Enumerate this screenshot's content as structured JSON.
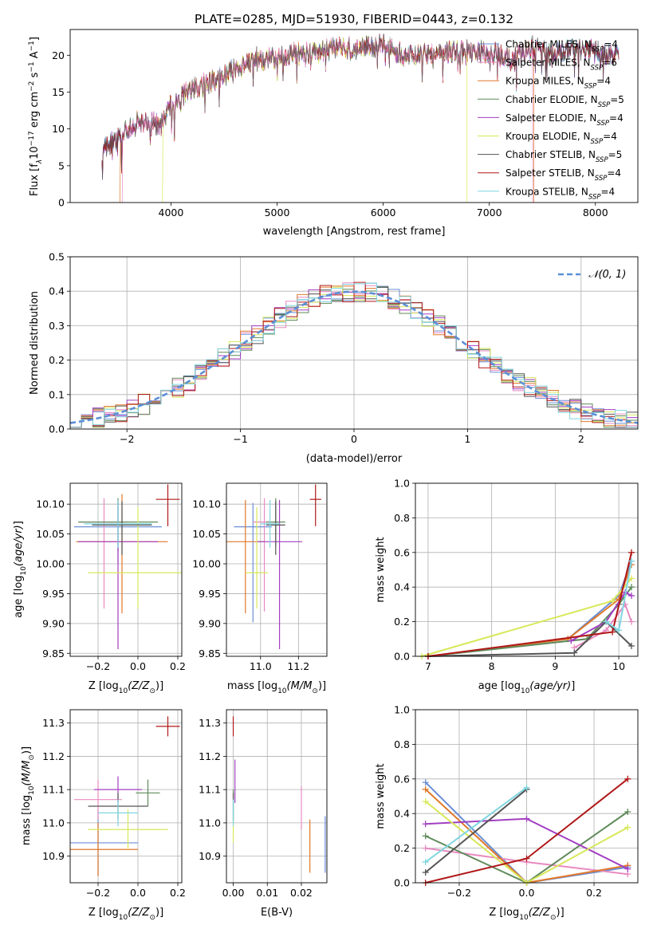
{
  "figure_title": "PLATE=0285, MJD=51930, FIBERID=0443, z=0.132",
  "models": [
    {
      "name": "Chabrier MILES",
      "nssp": 4,
      "color": "#6a8fd6"
    },
    {
      "name": "Salpeter MILES",
      "nssp": 6,
      "color": "#e88ac0"
    },
    {
      "name": "Kroupa MILES",
      "nssp": 4,
      "color": "#e0782a"
    },
    {
      "name": "Chabrier ELODIE",
      "nssp": 5,
      "color": "#5f8a5a"
    },
    {
      "name": "Salpeter ELODIE",
      "nssp": 4,
      "color": "#a23fc2"
    },
    {
      "name": "Kroupa ELODIE",
      "nssp": 4,
      "color": "#d8e85a"
    },
    {
      "name": "Chabrier STELIB",
      "nssp": 5,
      "color": "#555555"
    },
    {
      "name": "Salpeter STELIB",
      "nssp": 4,
      "color": "#b01818"
    },
    {
      "name": "Kroupa STELIB",
      "nssp": 4,
      "color": "#7fd6e0"
    }
  ],
  "chart_data": [
    {
      "id": "spectrum",
      "type": "line",
      "xlabel": "wavelength [Angstrom, rest frame]",
      "ylabel_main": "Flux [f",
      "ylabel_sub": "λ",
      "ylabel_rest": "10",
      "ylabel_exp": "−17",
      "ylabel_tail": " erg cm",
      "ylabel_tail_exp": "−2",
      "ylabel_tail2": " s",
      "ylabel_tail2_exp": "−1",
      "ylabel_tail3": " A",
      "ylabel_tail3_exp": "−1",
      "ylabel_end": "]",
      "xlim": [
        3050,
        8400
      ],
      "ylim": [
        0,
        23.5
      ],
      "xticks": [
        4000,
        5000,
        6000,
        7000,
        8000
      ],
      "yticks": [
        0,
        5,
        10,
        15,
        20
      ],
      "continuum": [
        [
          3350,
          7.5
        ],
        [
          3500,
          8.5
        ],
        [
          3700,
          11
        ],
        [
          3900,
          10.5
        ],
        [
          4000,
          13
        ],
        [
          4200,
          15.5
        ],
        [
          4400,
          16.5
        ],
        [
          4600,
          18
        ],
        [
          4800,
          19.5
        ],
        [
          5000,
          19.5
        ],
        [
          5200,
          20.5
        ],
        [
          5400,
          20.5
        ],
        [
          5600,
          21
        ],
        [
          5800,
          21
        ],
        [
          6000,
          21.5
        ],
        [
          6200,
          20
        ],
        [
          6400,
          20
        ],
        [
          6600,
          20.5
        ],
        [
          6800,
          20.5
        ],
        [
          7000,
          20.5
        ],
        [
          7200,
          19.5
        ],
        [
          7400,
          21
        ],
        [
          7600,
          20
        ],
        [
          7800,
          21
        ],
        [
          8000,
          20.5
        ],
        [
          8200,
          20
        ]
      ],
      "model_cutoffs": [
        {
          "model": "Kroupa MILES",
          "start": 3520,
          "end": 7420
        },
        {
          "model": "Kroupa ELODIE",
          "start": 3920,
          "end": 6790
        },
        {
          "model": "Salpeter MILES",
          "start": 3540,
          "end": 7410
        }
      ]
    },
    {
      "id": "residuals",
      "type": "histogram",
      "xlabel": "(data-model)/error",
      "ylabel": "Normed distribution",
      "xlim": [
        -2.5,
        2.5
      ],
      "ylim": [
        0,
        0.5
      ],
      "xticks": [
        -2,
        -1,
        0,
        1,
        2
      ],
      "xtick_labels": [
        "−2",
        "−1",
        "0",
        "1",
        "2"
      ],
      "yticks": [
        0.0,
        0.1,
        0.2,
        0.3,
        0.4,
        0.5
      ],
      "ytick_labels": [
        "0.0",
        "0.1",
        "0.2",
        "0.3",
        "0.4",
        "0.5"
      ],
      "bin_width": 0.1,
      "bin_start": -2.5,
      "reference_curve": "normal",
      "reference_label": "𝒩(0, 1)",
      "reference_color": "#5b8fd6"
    },
    {
      "id": "age-vs-Z",
      "type": "scatter",
      "xlabel_main": "Z [log",
      "xlabel_sub": "10",
      "xlabel_rest": "(Z/Z",
      "xlabel_sun": "⊙",
      "xlabel_end": ")]",
      "ylabel": "age  [log10(age/yr)]",
      "xlim": [
        -0.34,
        0.22
      ],
      "ylim": [
        9.845,
        10.135
      ],
      "xticks": [
        -0.2,
        0.0,
        0.2
      ],
      "xtick_labels": [
        "−0.2",
        "0.0",
        "0.2"
      ],
      "yticks": [
        9.85,
        9.9,
        9.95,
        10.0,
        10.05,
        10.1
      ],
      "ytick_labels": [
        "9.85",
        "9.90",
        "9.95",
        "10.00",
        "10.05",
        "10.10"
      ],
      "points": [
        {
          "model": "Chabrier MILES",
          "x": -0.1,
          "y": 10.062,
          "xerr": 0.22,
          "yerr": [
            0.06,
            0.04
          ]
        },
        {
          "model": "Salpeter MILES",
          "x": -0.17,
          "y": 10.07,
          "xerr": 0.12,
          "yerr": [
            0.145,
            0.04
          ]
        },
        {
          "model": "Kroupa MILES",
          "x": -0.08,
          "y": 10.037,
          "xerr": 0.23,
          "yerr": [
            0.12,
            0.08
          ]
        },
        {
          "model": "Chabrier ELODIE",
          "x": -0.1,
          "y": 10.07,
          "xerr": 0.2,
          "yerr": [
            0.05,
            0.04
          ]
        },
        {
          "model": "Salpeter ELODIE",
          "x": -0.1,
          "y": 10.037,
          "xerr": 0.2,
          "yerr": [
            0.18,
            0.07
          ]
        },
        {
          "model": "Kroupa ELODIE",
          "x": 0.0,
          "y": 9.985,
          "xerr": 0.25,
          "yerr": [
            0.06,
            0.11
          ]
        },
        {
          "model": "Chabrier STELIB",
          "x": -0.08,
          "y": 10.065,
          "xerr": 0.15,
          "yerr": [
            0.05,
            0.04
          ]
        },
        {
          "model": "Salpeter STELIB",
          "x": 0.15,
          "y": 10.108,
          "xerr": 0.06,
          "yerr": [
            0.045,
            0.025
          ]
        },
        {
          "model": "Kroupa STELIB",
          "x": -0.1,
          "y": 10.067,
          "xerr": 0.17,
          "yerr": [
            0.04,
            0.04
          ]
        }
      ]
    },
    {
      "id": "age-vs-mass",
      "type": "scatter",
      "xlabel_main": "mass [log",
      "xlabel_sub": "10",
      "xlabel_rest": "(M/M",
      "xlabel_sun": "⊙",
      "xlabel_end": ")]",
      "xlim": [
        10.82,
        11.35
      ],
      "ylim": [
        9.845,
        10.135
      ],
      "xticks": [
        11.0,
        11.2
      ],
      "xtick_labels": [
        "11.0",
        "11.2"
      ],
      "yticks": [
        9.85,
        9.9,
        9.95,
        10.0,
        10.05,
        10.1
      ],
      "ytick_labels": [
        "9.85",
        "9.90",
        "9.95",
        "10.00",
        "10.05",
        "10.10"
      ],
      "points": [
        {
          "model": "Chabrier MILES",
          "x": 10.96,
          "y": 10.062,
          "xerr": 0.1,
          "yerr": [
            0.16,
            0.04
          ]
        },
        {
          "model": "Salpeter MILES",
          "x": 11.02,
          "y": 10.07,
          "xerr": 0.06,
          "yerr": [
            0.15,
            0.04
          ]
        },
        {
          "model": "Kroupa MILES",
          "x": 10.92,
          "y": 10.037,
          "xerr": 0.1,
          "yerr": [
            0.12,
            0.07
          ]
        },
        {
          "model": "Chabrier ELODIE",
          "x": 11.08,
          "y": 10.07,
          "xerr": 0.05,
          "yerr": [
            0.04,
            0.04
          ]
        },
        {
          "model": "Salpeter ELODIE",
          "x": 11.1,
          "y": 10.037,
          "xerr": 0.12,
          "yerr": [
            0.18,
            0.07
          ]
        },
        {
          "model": "Kroupa ELODIE",
          "x": 10.98,
          "y": 9.985,
          "xerr": 0.06,
          "yerr": [
            0.06,
            0.11
          ]
        },
        {
          "model": "Chabrier STELIB",
          "x": 11.08,
          "y": 10.065,
          "xerr": 0.05,
          "yerr": [
            0.05,
            0.04
          ]
        },
        {
          "model": "Salpeter STELIB",
          "x": 11.29,
          "y": 10.108,
          "xerr": 0.03,
          "yerr": [
            0.045,
            0.025
          ]
        },
        {
          "model": "Kroupa STELIB",
          "x": 11.05,
          "y": 10.067,
          "xerr": 0.05,
          "yerr": [
            0.04,
            0.04
          ]
        }
      ]
    },
    {
      "id": "weight-vs-age",
      "type": "line",
      "xlabel": "age  [log10(age/yr)]",
      "ylabel": "mass weight",
      "xlim": [
        6.8,
        10.3
      ],
      "ylim": [
        0,
        1.0
      ],
      "xticks": [
        7,
        8,
        9,
        10
      ],
      "yticks": [
        0.0,
        0.2,
        0.4,
        0.6,
        0.8,
        1.0
      ],
      "ytick_labels": [
        "0.0",
        "0.2",
        "0.4",
        "0.6",
        "0.8",
        "1.0"
      ],
      "series": [
        {
          "model": "Chabrier MILES",
          "x": [
            7.0,
            9.2,
            10.0,
            10.2
          ],
          "y": [
            0.0,
            0.1,
            0.35,
            0.55
          ]
        },
        {
          "model": "Salpeter MILES",
          "x": [
            9.3,
            9.8,
            10.1,
            10.2
          ],
          "y": [
            0.05,
            0.15,
            0.3,
            0.2
          ]
        },
        {
          "model": "Kroupa MILES",
          "x": [
            7.0,
            9.2,
            10.0,
            10.2
          ],
          "y": [
            0.0,
            0.1,
            0.33,
            0.53
          ]
        },
        {
          "model": "Chabrier ELODIE",
          "x": [
            7.0,
            9.5,
            10.0,
            10.2
          ],
          "y": [
            0.0,
            0.1,
            0.3,
            0.4
          ]
        },
        {
          "model": "Salpeter ELODIE",
          "x": [
            9.25,
            9.8,
            10.1,
            10.2
          ],
          "y": [
            0.09,
            0.2,
            0.37,
            0.35
          ]
        },
        {
          "model": "Kroupa ELODIE",
          "x": [
            6.9,
            9.9,
            10.2
          ],
          "y": [
            0.0,
            0.32,
            0.45
          ]
        },
        {
          "model": "Chabrier STELIB",
          "x": [
            7.0,
            9.3,
            9.8,
            10.2
          ],
          "y": [
            0.0,
            0.02,
            0.2,
            0.06
          ]
        },
        {
          "model": "Salpeter STELIB",
          "x": [
            7.0,
            9.9,
            10.2
          ],
          "y": [
            0.0,
            0.14,
            0.6
          ]
        },
        {
          "model": "Kroupa STELIB",
          "x": [
            9.8,
            10.0,
            10.2
          ],
          "y": [
            0.2,
            0.15,
            0.55
          ]
        }
      ]
    },
    {
      "id": "mass-vs-Z",
      "type": "scatter",
      "xlabel_main": "Z [log",
      "xlabel_sub": "10",
      "xlabel_rest": "(Z/Z",
      "xlabel_sun": "⊙",
      "xlabel_end": ")]",
      "ylabel": "mass [log10(M/M⊙)]",
      "xlim": [
        -0.34,
        0.22
      ],
      "ylim": [
        10.82,
        11.34
      ],
      "xticks": [
        -0.2,
        0.0,
        0.2
      ],
      "xtick_labels": [
        "−0.2",
        "0.0",
        "0.2"
      ],
      "yticks": [
        10.9,
        11.0,
        11.1,
        11.2,
        11.3
      ],
      "ytick_labels": [
        "10.9",
        "11.0",
        "11.1",
        "11.2",
        "11.3"
      ],
      "points": [
        {
          "model": "Chabrier MILES",
          "x": -0.2,
          "y": 10.94,
          "xerr": 0.2,
          "yerr": [
            0.1,
            0.1
          ]
        },
        {
          "model": "Salpeter MILES",
          "x": -0.2,
          "y": 11.07,
          "xerr": 0.12,
          "yerr": [
            0.06,
            0.06
          ]
        },
        {
          "model": "Kroupa MILES",
          "x": -0.2,
          "y": 10.92,
          "xerr": 0.2,
          "yerr": [
            0.08,
            0.08
          ]
        },
        {
          "model": "Chabrier ELODIE",
          "x": 0.05,
          "y": 11.09,
          "xerr": 0.06,
          "yerr": [
            0.04,
            0.04
          ]
        },
        {
          "model": "Salpeter ELODIE",
          "x": -0.1,
          "y": 11.1,
          "xerr": 0.12,
          "yerr": [
            0.04,
            0.04
          ]
        },
        {
          "model": "Kroupa ELODIE",
          "x": -0.05,
          "y": 10.98,
          "xerr": 0.2,
          "yerr": [
            0.06,
            0.06
          ]
        },
        {
          "model": "Chabrier STELIB",
          "x": -0.1,
          "y": 11.05,
          "xerr": 0.15,
          "yerr": [
            0.04,
            0.04
          ]
        },
        {
          "model": "Salpeter STELIB",
          "x": 0.15,
          "y": 11.29,
          "xerr": 0.06,
          "yerr": [
            0.03,
            0.03
          ]
        },
        {
          "model": "Kroupa STELIB",
          "x": -0.1,
          "y": 11.03,
          "xerr": 0.1,
          "yerr": [
            0.04,
            0.04
          ]
        }
      ]
    },
    {
      "id": "mass-vs-ebv",
      "type": "scatter",
      "xlabel": "E(B-V)",
      "xlim": [
        -0.002,
        0.0275
      ],
      "ylim": [
        10.82,
        11.34
      ],
      "xticks": [
        0.0,
        0.01,
        0.02
      ],
      "xtick_labels": [
        "0.00",
        "0.01",
        "0.02"
      ],
      "yticks": [
        10.9,
        11.0,
        11.1,
        11.2,
        11.3
      ],
      "ytick_labels": [
        "10.9",
        "11.0",
        "11.1",
        "11.2",
        "11.3"
      ],
      "points": [
        {
          "model": "Chabrier MILES",
          "x": 0.027,
          "y": 10.94,
          "xerr": 0.0,
          "yerr": [
            0.09,
            0.08
          ]
        },
        {
          "model": "Salpeter MILES",
          "x": 0.02,
          "y": 11.05,
          "xerr": 0.0,
          "yerr": [
            0.07,
            0.06
          ]
        },
        {
          "model": "Kroupa MILES",
          "x": 0.0225,
          "y": 10.93,
          "xerr": 0.0,
          "yerr": [
            0.08,
            0.08
          ]
        },
        {
          "model": "Chabrier ELODIE",
          "x": 0.0,
          "y": 11.05,
          "xerr": 0.0,
          "yerr": [
            0.05,
            0.05
          ]
        },
        {
          "model": "Salpeter ELODIE",
          "x": 0.0005,
          "y": 11.12,
          "xerr": 0.0,
          "yerr": [
            0.06,
            0.07
          ]
        },
        {
          "model": "Kroupa ELODIE",
          "x": 0.0,
          "y": 10.98,
          "xerr": 0.0,
          "yerr": [
            0.04,
            0.04
          ]
        },
        {
          "model": "Chabrier STELIB",
          "x": 0.0,
          "y": 11.05,
          "xerr": 0.0,
          "yerr": [
            0.04,
            0.04
          ]
        },
        {
          "model": "Salpeter STELIB",
          "x": 0.0,
          "y": 11.29,
          "xerr": 0.0,
          "yerr": [
            0.03,
            0.03
          ]
        },
        {
          "model": "Kroupa STELIB",
          "x": 0.0,
          "y": 11.03,
          "xerr": 0.0,
          "yerr": [
            0.04,
            0.04
          ]
        }
      ]
    },
    {
      "id": "weight-vs-Z",
      "type": "line",
      "xlabel_main": "Z [log",
      "xlabel_sub": "10",
      "xlabel_rest": "(Z/Z",
      "xlabel_sun": "⊙",
      "xlabel_end": ")]",
      "ylabel": "mass weight",
      "xlim": [
        -0.33,
        0.33
      ],
      "ylim": [
        0,
        1.0
      ],
      "xticks": [
        -0.2,
        0.0,
        0.2
      ],
      "xtick_labels": [
        "−0.2",
        "0.0",
        "0.2"
      ],
      "yticks": [
        0.0,
        0.2,
        0.4,
        0.6,
        0.8,
        1.0
      ],
      "ytick_labels": [
        "0.0",
        "0.2",
        "0.4",
        "0.6",
        "0.8",
        "1.0"
      ],
      "series": [
        {
          "model": "Chabrier MILES",
          "x": [
            -0.3,
            0.0,
            0.3
          ],
          "y": [
            0.58,
            0.0,
            0.09
          ]
        },
        {
          "model": "Salpeter MILES",
          "x": [
            -0.3,
            0.0,
            0.3
          ],
          "y": [
            0.2,
            0.12,
            0.05
          ]
        },
        {
          "model": "Kroupa MILES",
          "x": [
            -0.3,
            0.0,
            0.3
          ],
          "y": [
            0.54,
            0.0,
            0.1
          ]
        },
        {
          "model": "Chabrier ELODIE",
          "x": [
            -0.3,
            0.0,
            0.3
          ],
          "y": [
            0.27,
            0.0,
            0.41
          ]
        },
        {
          "model": "Salpeter ELODIE",
          "x": [
            -0.3,
            0.0,
            0.3
          ],
          "y": [
            0.34,
            0.37,
            0.08
          ]
        },
        {
          "model": "Kroupa ELODIE",
          "x": [
            -0.3,
            0.0,
            0.3
          ],
          "y": [
            0.47,
            0.0,
            0.32
          ]
        },
        {
          "model": "Chabrier STELIB",
          "x": [
            -0.3,
            0.0
          ],
          "y": [
            0.06,
            0.54
          ]
        },
        {
          "model": "Salpeter STELIB",
          "x": [
            -0.3,
            0.0,
            0.3
          ],
          "y": [
            0.0,
            0.14,
            0.6
          ]
        },
        {
          "model": "Kroupa STELIB",
          "x": [
            -0.3,
            0.0
          ],
          "y": [
            0.12,
            0.55
          ]
        }
      ]
    }
  ]
}
